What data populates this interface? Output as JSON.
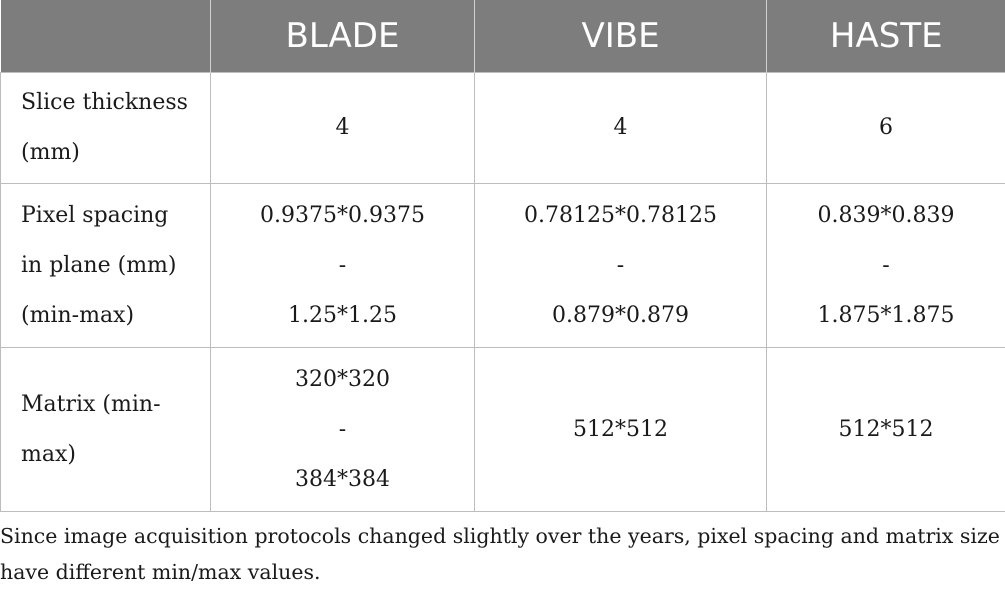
{
  "table": {
    "headers": [
      "",
      "BLADE",
      "VIBE",
      "HASTE"
    ],
    "rows": [
      {
        "label_lines": [
          "Slice thickness",
          "(mm)"
        ],
        "cells": [
          [
            "4"
          ],
          [
            "4"
          ],
          [
            "6"
          ]
        ]
      },
      {
        "label_lines": [
          "Pixel spacing",
          "in plane (mm)",
          "(min-max)"
        ],
        "cells": [
          [
            "0.9375*0.9375",
            "-",
            "1.25*1.25"
          ],
          [
            "0.78125*0.78125",
            "-",
            "0.879*0.879"
          ],
          [
            "0.839*0.839",
            "-",
            "1.875*1.875"
          ]
        ]
      },
      {
        "label_lines": [
          "Matrix (min-",
          "max)"
        ],
        "cells": [
          [
            "320*320",
            "-",
            "384*384"
          ],
          [
            "512*512"
          ],
          [
            "512*512"
          ]
        ]
      }
    ]
  },
  "footnote": "Since image acquisition protocols changed slightly over the years, pixel spacing and matrix size have different min/max values."
}
